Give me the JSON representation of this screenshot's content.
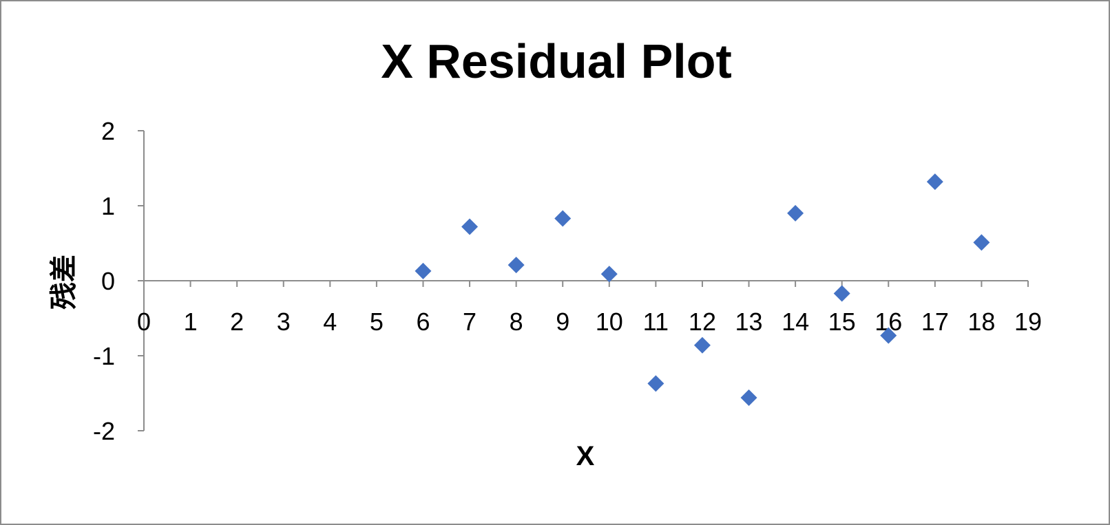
{
  "chart_data": {
    "type": "scatter",
    "title": "X Residual Plot",
    "xlabel": "X",
    "ylabel": "残差",
    "xlim": [
      0,
      19
    ],
    "ylim": [
      -2,
      2
    ],
    "x_ticks": [
      0,
      1,
      2,
      3,
      4,
      5,
      6,
      7,
      8,
      9,
      10,
      11,
      12,
      13,
      14,
      15,
      16,
      17,
      18,
      19
    ],
    "y_ticks": [
      2,
      1,
      0,
      -1,
      -2
    ],
    "grid": false,
    "legend": "none",
    "marker": "diamond",
    "series": [
      {
        "color": "#4472C4",
        "x": [
          6,
          7,
          8,
          9,
          10,
          11,
          12,
          13,
          14,
          15,
          16,
          17,
          18
        ],
        "y": [
          0.13,
          0.72,
          0.21,
          0.83,
          0.09,
          -1.37,
          -0.86,
          -1.56,
          0.9,
          -0.17,
          -0.73,
          1.32,
          0.51
        ]
      }
    ]
  }
}
